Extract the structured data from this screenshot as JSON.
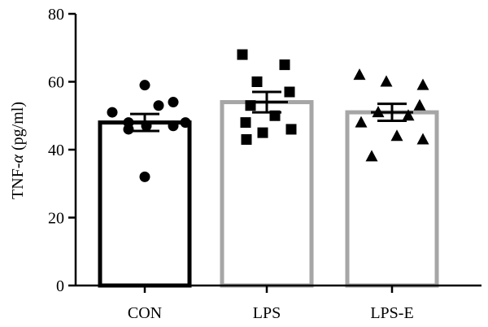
{
  "chart_data": {
    "type": "bar",
    "ylabel_main": "TNF-",
    "ylabel_symbol": "α",
    "ylabel_unit": " (pg/ml)",
    "ylim": [
      0,
      80
    ],
    "yticks": [
      0,
      20,
      40,
      60,
      80
    ],
    "grid": false,
    "categories": [
      "CON",
      "LPS",
      "LPS-E"
    ],
    "means": [
      48,
      54,
      51
    ],
    "sem": [
      2.5,
      3,
      2.5
    ],
    "bar_colors": [
      "#000000",
      "#a6a6a6",
      "#a6a6a6"
    ],
    "markers": [
      "circle",
      "square",
      "triangle"
    ],
    "points": [
      [
        59,
        54,
        53,
        51,
        48,
        48,
        47,
        47,
        46,
        32
      ],
      [
        68,
        65,
        60,
        57,
        53,
        50,
        48,
        46,
        45,
        43
      ],
      [
        62,
        60,
        59,
        53,
        51,
        50,
        48,
        44,
        43,
        38
      ]
    ]
  }
}
